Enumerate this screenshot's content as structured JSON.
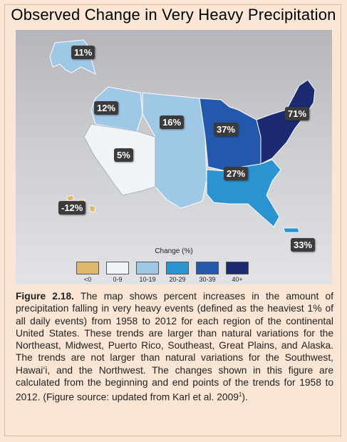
{
  "title": "Observed Change in Very Heavy Precipitation",
  "legend": {
    "title": "Change (%)",
    "items": [
      {
        "label": "<0",
        "color": "#e0b86a"
      },
      {
        "label": "0-9",
        "color": "#eef4f8"
      },
      {
        "label": "10-19",
        "color": "#9fc7e6"
      },
      {
        "label": "20-29",
        "color": "#2b93d0"
      },
      {
        "label": "30-39",
        "color": "#2458ad"
      },
      {
        "label": "40+",
        "color": "#1b2a72"
      }
    ]
  },
  "regions": [
    {
      "name": "Alaska",
      "value": "11%"
    },
    {
      "name": "Northwest",
      "value": "12%"
    },
    {
      "name": "Great Plains",
      "value": "16%"
    },
    {
      "name": "Midwest",
      "value": "37%"
    },
    {
      "name": "Northeast",
      "value": "71%"
    },
    {
      "name": "Southwest",
      "value": "5%"
    },
    {
      "name": "Southeast",
      "value": "27%"
    },
    {
      "name": "Hawaii",
      "value": "-12%"
    },
    {
      "name": "Puerto Rico",
      "value": "33%"
    }
  ],
  "caption": {
    "figure_label": "Figure 2.18.",
    "text": " The map shows percent increases in the amount of precipitation falling in very heavy events (defined as the heaviest 1% of all daily events) from 1958 to 2012 for each region of the continental United States. These trends are larger than natural variations for the Northeast, Midwest, Puerto Rico, Southeast, Great Plains, and Alaska. The trends are not larger than natural variations for the Southwest, Hawai‘i, and the Northwest. The changes shown in this figure are calculated from the beginning and end points of the trends for 1958 to 2012. (Figure source: updated from Karl et al. 2009",
    "superscript": "1",
    "end": ")."
  }
}
